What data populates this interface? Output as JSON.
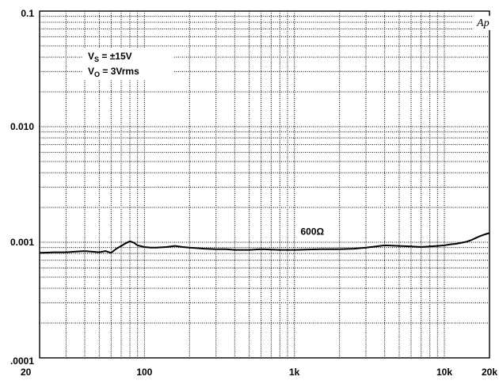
{
  "chart_data": {
    "type": "line",
    "xscale": "log",
    "yscale": "log",
    "xlim": [
      20,
      20000
    ],
    "ylim": [
      0.0001,
      0.1
    ],
    "grid": true,
    "x_tick_labels": [
      "20",
      "100",
      "1k",
      "10k",
      "20k"
    ],
    "y_tick_labels": [
      "0.1",
      "0.010",
      "0.001",
      ".0001"
    ],
    "series": [
      {
        "name": "600Ω",
        "color": "#000000",
        "x": [
          20,
          25,
          30,
          35,
          40,
          50,
          55,
          60,
          65,
          70,
          75,
          80,
          85,
          90,
          100,
          110,
          120,
          140,
          160,
          180,
          200,
          250,
          300,
          350,
          400,
          500,
          600,
          800,
          1000,
          1500,
          2000,
          2500,
          3000,
          3500,
          4000,
          5000,
          6000,
          7000,
          8000,
          9000,
          10000,
          11000,
          12000,
          13000,
          14000,
          15000,
          16000,
          17000,
          18000,
          19000,
          20000
        ],
        "y": [
          0.00081,
          0.00082,
          0.00082,
          0.00083,
          0.00084,
          0.00082,
          0.00084,
          0.00081,
          0.00088,
          0.00093,
          0.00098,
          0.00102,
          0.00099,
          0.00094,
          0.00091,
          0.0009,
          0.0009,
          0.00091,
          0.00093,
          0.00091,
          0.0009,
          0.00088,
          0.00087,
          0.00087,
          0.00086,
          0.00086,
          0.00087,
          0.00086,
          0.00086,
          0.00087,
          0.00087,
          0.00088,
          0.0009,
          0.00092,
          0.00094,
          0.00093,
          0.00092,
          0.00091,
          0.00092,
          0.00093,
          0.00094,
          0.00096,
          0.00097,
          0.00099,
          0.00101,
          0.00104,
          0.00108,
          0.00112,
          0.00115,
          0.00118,
          0.0012
        ]
      }
    ],
    "annotations": [
      {
        "text": "600Ω",
        "x": 1100,
        "y": 0.00116
      },
      {
        "text": "Ap",
        "x": 16500,
        "y": 0.074
      }
    ],
    "conditions": {
      "vs_base": "V",
      "vs_sub": "S",
      "vs_rest": " = ±15V",
      "vo_base": "V",
      "vo_sub": "O",
      "vo_rest": " = 3Vrms"
    }
  }
}
